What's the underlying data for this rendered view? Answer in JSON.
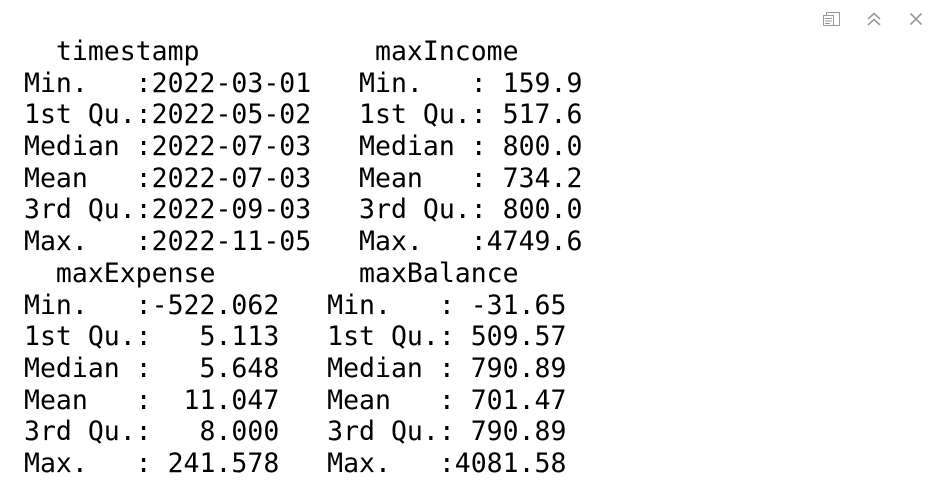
{
  "toolbar": {
    "icons": [
      "popout-icon",
      "collapse-icon",
      "close-icon"
    ],
    "icon_color": "#9a9a9a"
  },
  "console": {
    "lines": [
      "  timestamp           maxIncome     ",
      "Min.   :2022-03-01   Min.   : 159.9  ",
      "1st Qu.:2022-05-02   1st Qu.: 517.6  ",
      "Median :2022-07-03   Median : 800.0  ",
      "Mean   :2022-07-03   Mean   : 734.2  ",
      "3rd Qu.:2022-09-03   3rd Qu.: 800.0  ",
      "Max.   :2022-11-05   Max.   :4749.6  ",
      "  maxExpense         maxBalance     ",
      "Min.   :-522.062   Min.   : -31.65  ",
      "1st Qu.:   5.113   1st Qu.: 509.57  ",
      "Median :   5.648   Median : 790.89  ",
      "Mean   :  11.047   Mean   : 701.47  ",
      "3rd Qu.:   8.000   3rd Qu.: 790.89  ",
      "Max.   : 241.578   Max.   :4081.58  "
    ]
  }
}
